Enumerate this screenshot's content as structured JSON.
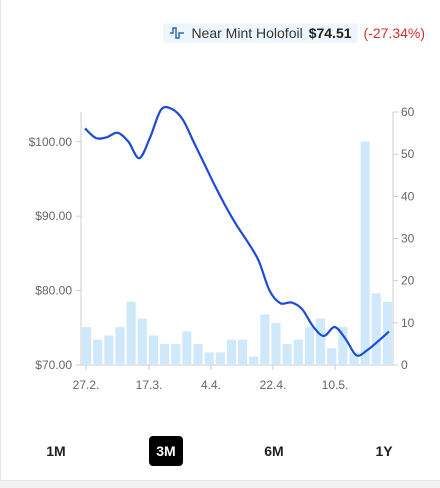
{
  "header": {
    "condition": "Near Mint Holofoil",
    "price": "$74.51",
    "change": "(-27.34%)"
  },
  "colors": {
    "line": "#1e4bd6",
    "bars": "#cfe9fb",
    "change": "#d32f2f"
  },
  "icons": {
    "header": "trend-line-icon"
  },
  "ranges": [
    {
      "label": "1M",
      "active": false
    },
    {
      "label": "3M",
      "active": true
    },
    {
      "label": "6M",
      "active": false
    },
    {
      "label": "1Y",
      "active": false
    }
  ],
  "chart_data": {
    "type": "line",
    "x_ticks": [
      "27.2.",
      "17.3.",
      "4.4.",
      "22.4.",
      "10.5."
    ],
    "y_left": {
      "ticks": [
        "$70.00",
        "$80.00",
        "$90.00",
        "$100.00"
      ],
      "range": [
        70,
        104
      ]
    },
    "y_right": {
      "ticks": [
        "0",
        "10",
        "20",
        "30",
        "40",
        "50",
        "60"
      ],
      "range": [
        0,
        60
      ]
    },
    "grid": false,
    "series": [
      {
        "type": "line",
        "axis": "left",
        "values": [
          101.8,
          100.5,
          100.6,
          101.2,
          100.0,
          97.8,
          100.6,
          104.3,
          104.4,
          103.0,
          100.0,
          97.0,
          94.0,
          91.2,
          88.7,
          86.5,
          84.0,
          80.0,
          78.3,
          78.4,
          77.5,
          75.2,
          73.9,
          75.1,
          73.5,
          71.3,
          72.0,
          73.2,
          74.5
        ]
      },
      {
        "type": "bar",
        "axis": "right",
        "values": [
          9,
          6,
          7,
          9,
          15,
          11,
          7,
          5,
          5,
          8,
          5,
          3,
          3,
          6,
          6,
          2,
          12,
          10,
          5,
          6,
          9,
          11,
          4,
          9,
          3,
          53,
          17,
          15
        ]
      }
    ]
  }
}
